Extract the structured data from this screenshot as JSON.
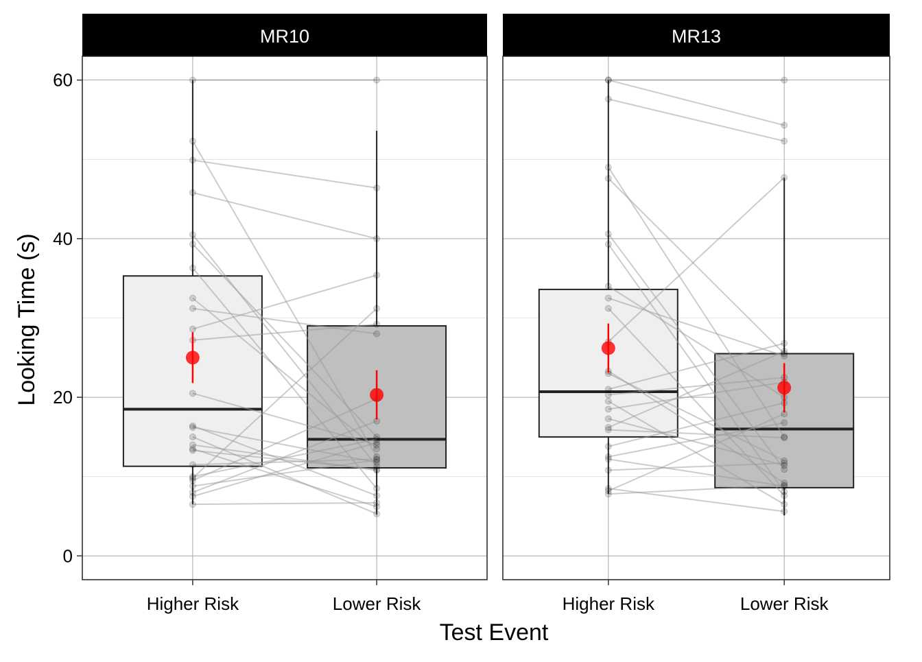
{
  "chart_data": {
    "type": "box",
    "xlabel": "Test Event",
    "ylabel": "Looking Time (s)",
    "ylim": [
      -3,
      63
    ],
    "y_ticks": [
      0,
      20,
      40,
      60
    ],
    "categories": [
      "Higher Risk",
      "Lower Risk"
    ],
    "grid": true,
    "colors": {
      "box_higher": "#efefef",
      "box_lower": "#bfbfbf",
      "strip": "#000000",
      "mean": "#ff0000",
      "lines": "#999999"
    },
    "facets": [
      {
        "name": "MR10",
        "boxes": [
          {
            "category": "Higher Risk",
            "lower_whisker": 6.5,
            "q1": 11.3,
            "median": 18.5,
            "q3": 35.3,
            "upper_whisker": 60.0
          },
          {
            "category": "Lower Risk",
            "lower_whisker": 5.2,
            "q1": 11.1,
            "median": 14.7,
            "q3": 29.0,
            "upper_whisker": 53.6
          }
        ],
        "means": [
          {
            "category": "Higher Risk",
            "mean": 25.0,
            "low": 21.8,
            "high": 28.2
          },
          {
            "category": "Lower Risk",
            "mean": 20.3,
            "low": 17.2,
            "high": 23.4
          }
        ],
        "pairs": [
          [
            60.0,
            60.0
          ],
          [
            52.3,
            12.5
          ],
          [
            49.9,
            46.4
          ],
          [
            45.8,
            40.0
          ],
          [
            40.5,
            11.3
          ],
          [
            39.3,
            15.0
          ],
          [
            36.3,
            8.5
          ],
          [
            32.5,
            13.5
          ],
          [
            31.2,
            28.0
          ],
          [
            28.6,
            35.4
          ],
          [
            27.2,
            29.2
          ],
          [
            20.5,
            14.0
          ],
          [
            16.4,
            7.6
          ],
          [
            16.2,
            11.8
          ],
          [
            15.0,
            5.3
          ],
          [
            14.0,
            10.8
          ],
          [
            13.5,
            6.2
          ],
          [
            13.3,
            10.9
          ],
          [
            11.5,
            12.2
          ],
          [
            10.0,
            14.7
          ],
          [
            9.8,
            31.2
          ],
          [
            9.5,
            19.8
          ],
          [
            8.8,
            12.1
          ],
          [
            8.0,
            17.0
          ],
          [
            7.5,
            14.3
          ],
          [
            6.5,
            6.7
          ]
        ]
      },
      {
        "name": "MR13",
        "boxes": [
          {
            "category": "Higher Risk",
            "lower_whisker": 7.8,
            "q1": 15.0,
            "median": 20.7,
            "q3": 33.6,
            "upper_whisker": 60.0
          },
          {
            "category": "Lower Risk",
            "lower_whisker": 5.1,
            "q1": 8.6,
            "median": 16.0,
            "q3": 25.5,
            "upper_whisker": 47.7
          }
        ],
        "means": [
          {
            "category": "Higher Risk",
            "mean": 26.2,
            "low": 23.1,
            "high": 29.3
          },
          {
            "category": "Lower Risk",
            "mean": 21.2,
            "low": 18.1,
            "high": 24.3
          }
        ],
        "pairs": [
          [
            60.0,
            60.0
          ],
          [
            60.0,
            54.3
          ],
          [
            57.6,
            52.3
          ],
          [
            49.0,
            15.0
          ],
          [
            47.6,
            25.5
          ],
          [
            40.6,
            10.9
          ],
          [
            39.3,
            8.1
          ],
          [
            34.0,
            20.0
          ],
          [
            32.5,
            25.2
          ],
          [
            31.2,
            7.6
          ],
          [
            27.0,
            47.7
          ],
          [
            23.3,
            9.2
          ],
          [
            23.0,
            12.0
          ],
          [
            21.0,
            26.8
          ],
          [
            20.3,
            22.5
          ],
          [
            19.5,
            6.5
          ],
          [
            18.5,
            21.9
          ],
          [
            17.3,
            11.4
          ],
          [
            16.2,
            25.8
          ],
          [
            15.9,
            14.9
          ],
          [
            13.8,
            19.3
          ],
          [
            12.5,
            16.8
          ],
          [
            12.2,
            8.8
          ],
          [
            10.8,
            11.7
          ],
          [
            8.5,
            5.6
          ],
          [
            8.2,
            17.9
          ],
          [
            7.8,
            8.9
          ]
        ]
      }
    ]
  }
}
